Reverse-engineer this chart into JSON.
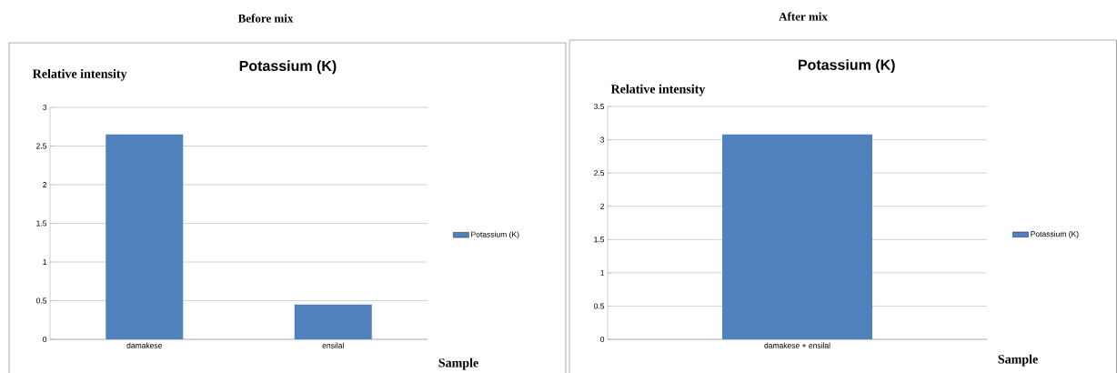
{
  "chart_data": [
    {
      "type": "bar",
      "title": "Potassium (K)",
      "ylabel": "Relative intensity",
      "xlabel": "Sample",
      "annotations": [
        "Before mix"
      ],
      "categories": [
        "damakese",
        "ensilal"
      ],
      "series": [
        {
          "name": "Potassium (K)",
          "color": "#4f81bd",
          "values": [
            2.65,
            0.45
          ]
        }
      ],
      "ylim": [
        0,
        3
      ],
      "yticks": [
        0,
        0.5,
        1,
        1.5,
        2,
        2.5,
        3
      ],
      "grid": "y",
      "legend": "right"
    },
    {
      "type": "bar",
      "title": "Potassium (K)",
      "ylabel": "Relative intensity",
      "xlabel": "Sample",
      "annotations": [
        "After mix"
      ],
      "categories": [
        "damakese + ensilal"
      ],
      "series": [
        {
          "name": "Potassium (K)",
          "color": "#4f81bd",
          "values": [
            3.08
          ]
        }
      ],
      "ylim": [
        0,
        3.5
      ],
      "yticks": [
        0,
        0.5,
        1,
        1.5,
        2,
        2.5,
        3,
        3.5
      ],
      "grid": "y",
      "legend": "right"
    }
  ]
}
